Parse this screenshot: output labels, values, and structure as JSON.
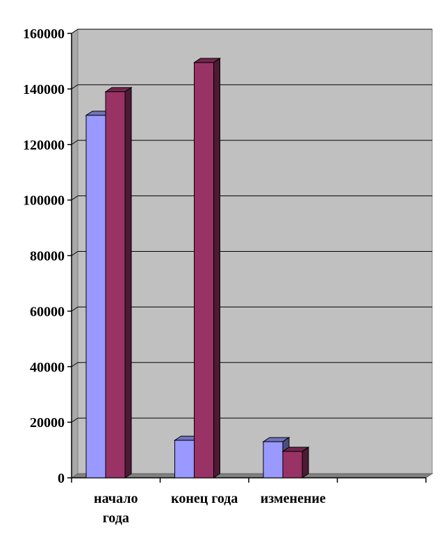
{
  "chart_data": {
    "type": "bar",
    "style": "3d-clustered-column",
    "categories": [
      "начало года",
      "конец года",
      "изменение",
      ""
    ],
    "category_label_lines": [
      [
        "начало",
        "года"
      ],
      [
        "конец года"
      ],
      [
        "изменение"
      ],
      []
    ],
    "series": [
      {
        "values": [
          130500,
          13500,
          13000,
          null
        ],
        "color": "#9999ff"
      },
      {
        "values": [
          139000,
          149500,
          9500,
          null
        ],
        "color": "#993366"
      }
    ],
    "yticks": [
      0,
      20000,
      40000,
      60000,
      80000,
      100000,
      120000,
      140000,
      160000
    ],
    "ylim": [
      0,
      160000
    ],
    "grid": true,
    "wall_color": "#c0c0c0",
    "floor_color": "#808080"
  }
}
